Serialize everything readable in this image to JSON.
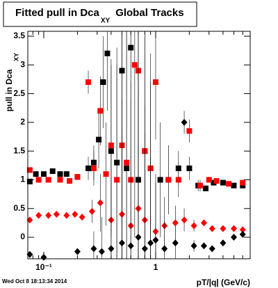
{
  "chart_data": {
    "type": "scatter",
    "title": "Fitted pull in Dca",
    "title_subscript": "XY",
    "title_suffix": "Global Tracks",
    "y_label": "pull in Dca",
    "y_label_subscript": "XY",
    "x_label": "pT/|q| (GeV/c)",
    "timestamp": "Wed Oct  8 18:13:34 2014",
    "log_x": true,
    "xlim": [
      0.072,
      7
    ],
    "ylim": [
      -0.375,
      3.585
    ],
    "xticks": [
      {
        "value": 0.1,
        "label": "10⁻¹"
      },
      1
    ],
    "xminorticks": [
      0.08,
      0.09,
      0.2,
      0.3,
      0.4,
      0.5,
      0.6,
      0.7,
      0.8,
      0.9,
      2,
      3,
      4,
      5,
      6,
      7
    ],
    "yticks": [
      0,
      0.5,
      1,
      1.5,
      2,
      2.5,
      3,
      3.5
    ],
    "series": [
      {
        "marker": "square",
        "color": "#000000",
        "x": [
          0.075,
          0.085,
          0.1,
          0.12,
          0.14,
          0.16,
          0.2,
          0.25,
          0.28,
          0.31,
          0.34,
          0.37,
          0.4,
          0.45,
          0.5,
          0.55,
          0.6,
          0.7,
          0.8,
          0.9,
          1.1,
          1.3,
          1.6,
          2.0,
          2.4,
          2.8,
          3.3,
          4.0,
          5.0,
          6.0
        ],
        "values": [
          0.97,
          1.1,
          1.1,
          1.15,
          1.1,
          1.1,
          1.05,
          1.2,
          1.3,
          1.7,
          2.7,
          3.2,
          1.5,
          1.3,
          2.9,
          1.2,
          3.3,
          1.0,
          1.5,
          1.2,
          1.0,
          1.0,
          1.2,
          1.2,
          0.9,
          0.85,
          0.95,
          0.95,
          0.9,
          0.9
        ],
        "errors": [
          0.03,
          0.03,
          0.03,
          0.03,
          0.03,
          0.03,
          0.05,
          0.2,
          0.3,
          0.5,
          0.8,
          1.0,
          1.5,
          2.0,
          2.5,
          3.0,
          3.0,
          3.0,
          2.5,
          2.0,
          1.0,
          0.6,
          0.3,
          0.2,
          0.1,
          0.05,
          0.03,
          0.03,
          0.03,
          0.03
        ]
      },
      {
        "marker": "square",
        "color": "#ff0000",
        "x": [
          0.075,
          0.09,
          0.11,
          0.14,
          0.17,
          0.2,
          0.25,
          0.28,
          0.32,
          0.36,
          0.4,
          0.45,
          0.5,
          0.55,
          0.6,
          0.65,
          0.7,
          0.8,
          0.9,
          1.0,
          1.3,
          1.6,
          2.0,
          2.5,
          3.0,
          3.5,
          4.5,
          6.0
        ],
        "values": [
          1.17,
          1.0,
          1.0,
          1.0,
          0.98,
          1.05,
          2.7,
          1.2,
          2.2,
          1.1,
          1.6,
          1.0,
          1.6,
          1.3,
          1.0,
          3.0,
          2.9,
          1.5,
          1.2,
          2.7,
          1.0,
          1.0,
          1.85,
          0.9,
          1.0,
          0.98,
          0.93,
          0.95
        ],
        "errors": [
          0.03,
          0.03,
          0.03,
          0.03,
          0.03,
          0.05,
          0.2,
          0.3,
          0.6,
          0.9,
          1.5,
          2.0,
          2.5,
          3.0,
          3.0,
          3.0,
          2.5,
          2.0,
          1.5,
          1.0,
          0.6,
          0.3,
          0.2,
          0.1,
          0.05,
          0.03,
          0.03,
          0.03
        ]
      },
      {
        "marker": "diamond",
        "color": "#ff0000",
        "x": [
          0.075,
          0.09,
          0.11,
          0.13,
          0.16,
          0.19,
          0.22,
          0.27,
          0.32,
          0.4,
          0.5,
          0.6,
          0.7,
          0.8,
          1.0,
          1.2,
          1.5,
          1.8,
          2.2,
          2.7,
          3.2,
          4.0,
          5.0,
          6.0
        ],
        "values": [
          0.3,
          0.38,
          0.38,
          0.4,
          0.38,
          0.4,
          0.35,
          0.45,
          0.6,
          0.3,
          0.4,
          0.2,
          0.5,
          0.3,
          0.1,
          0.2,
          0.25,
          0.3,
          0.2,
          0.25,
          0.15,
          0.15,
          0.15,
          0.13
        ],
        "errors": [
          0.02,
          0.02,
          0.02,
          0.02,
          0.02,
          0.02,
          0.05,
          0.2,
          0.5,
          1.2,
          2.0,
          2.5,
          2.5,
          2.0,
          1.0,
          0.5,
          0.3,
          0.2,
          0.1,
          0.05,
          0.02,
          0.02,
          0.02,
          0.02
        ]
      },
      {
        "marker": "diamond",
        "color": "#000000",
        "x": [
          0.075,
          0.1,
          0.2,
          0.28,
          0.33,
          0.4,
          0.5,
          0.6,
          0.7,
          0.8,
          0.9,
          1.0,
          1.2,
          1.5,
          1.8,
          2.2,
          2.7,
          3.2,
          4.0,
          5.0,
          6.0
        ],
        "values": [
          -0.3,
          -0.35,
          -0.25,
          -0.2,
          -0.25,
          -0.2,
          -0.1,
          -0.15,
          0.0,
          -0.2,
          -0.1,
          -0.05,
          -0.2,
          -0.1,
          2.0,
          -0.15,
          -0.15,
          -0.2,
          -0.1,
          0.0,
          0.05
        ],
        "errors": [
          0.02,
          0.02,
          0.05,
          0.3,
          0.6,
          1.2,
          2.0,
          2.5,
          2.5,
          2.0,
          1.5,
          1.0,
          0.5,
          0.3,
          0.2,
          0.1,
          0.05,
          0.02,
          0.02,
          0.02,
          0.02
        ]
      }
    ]
  }
}
